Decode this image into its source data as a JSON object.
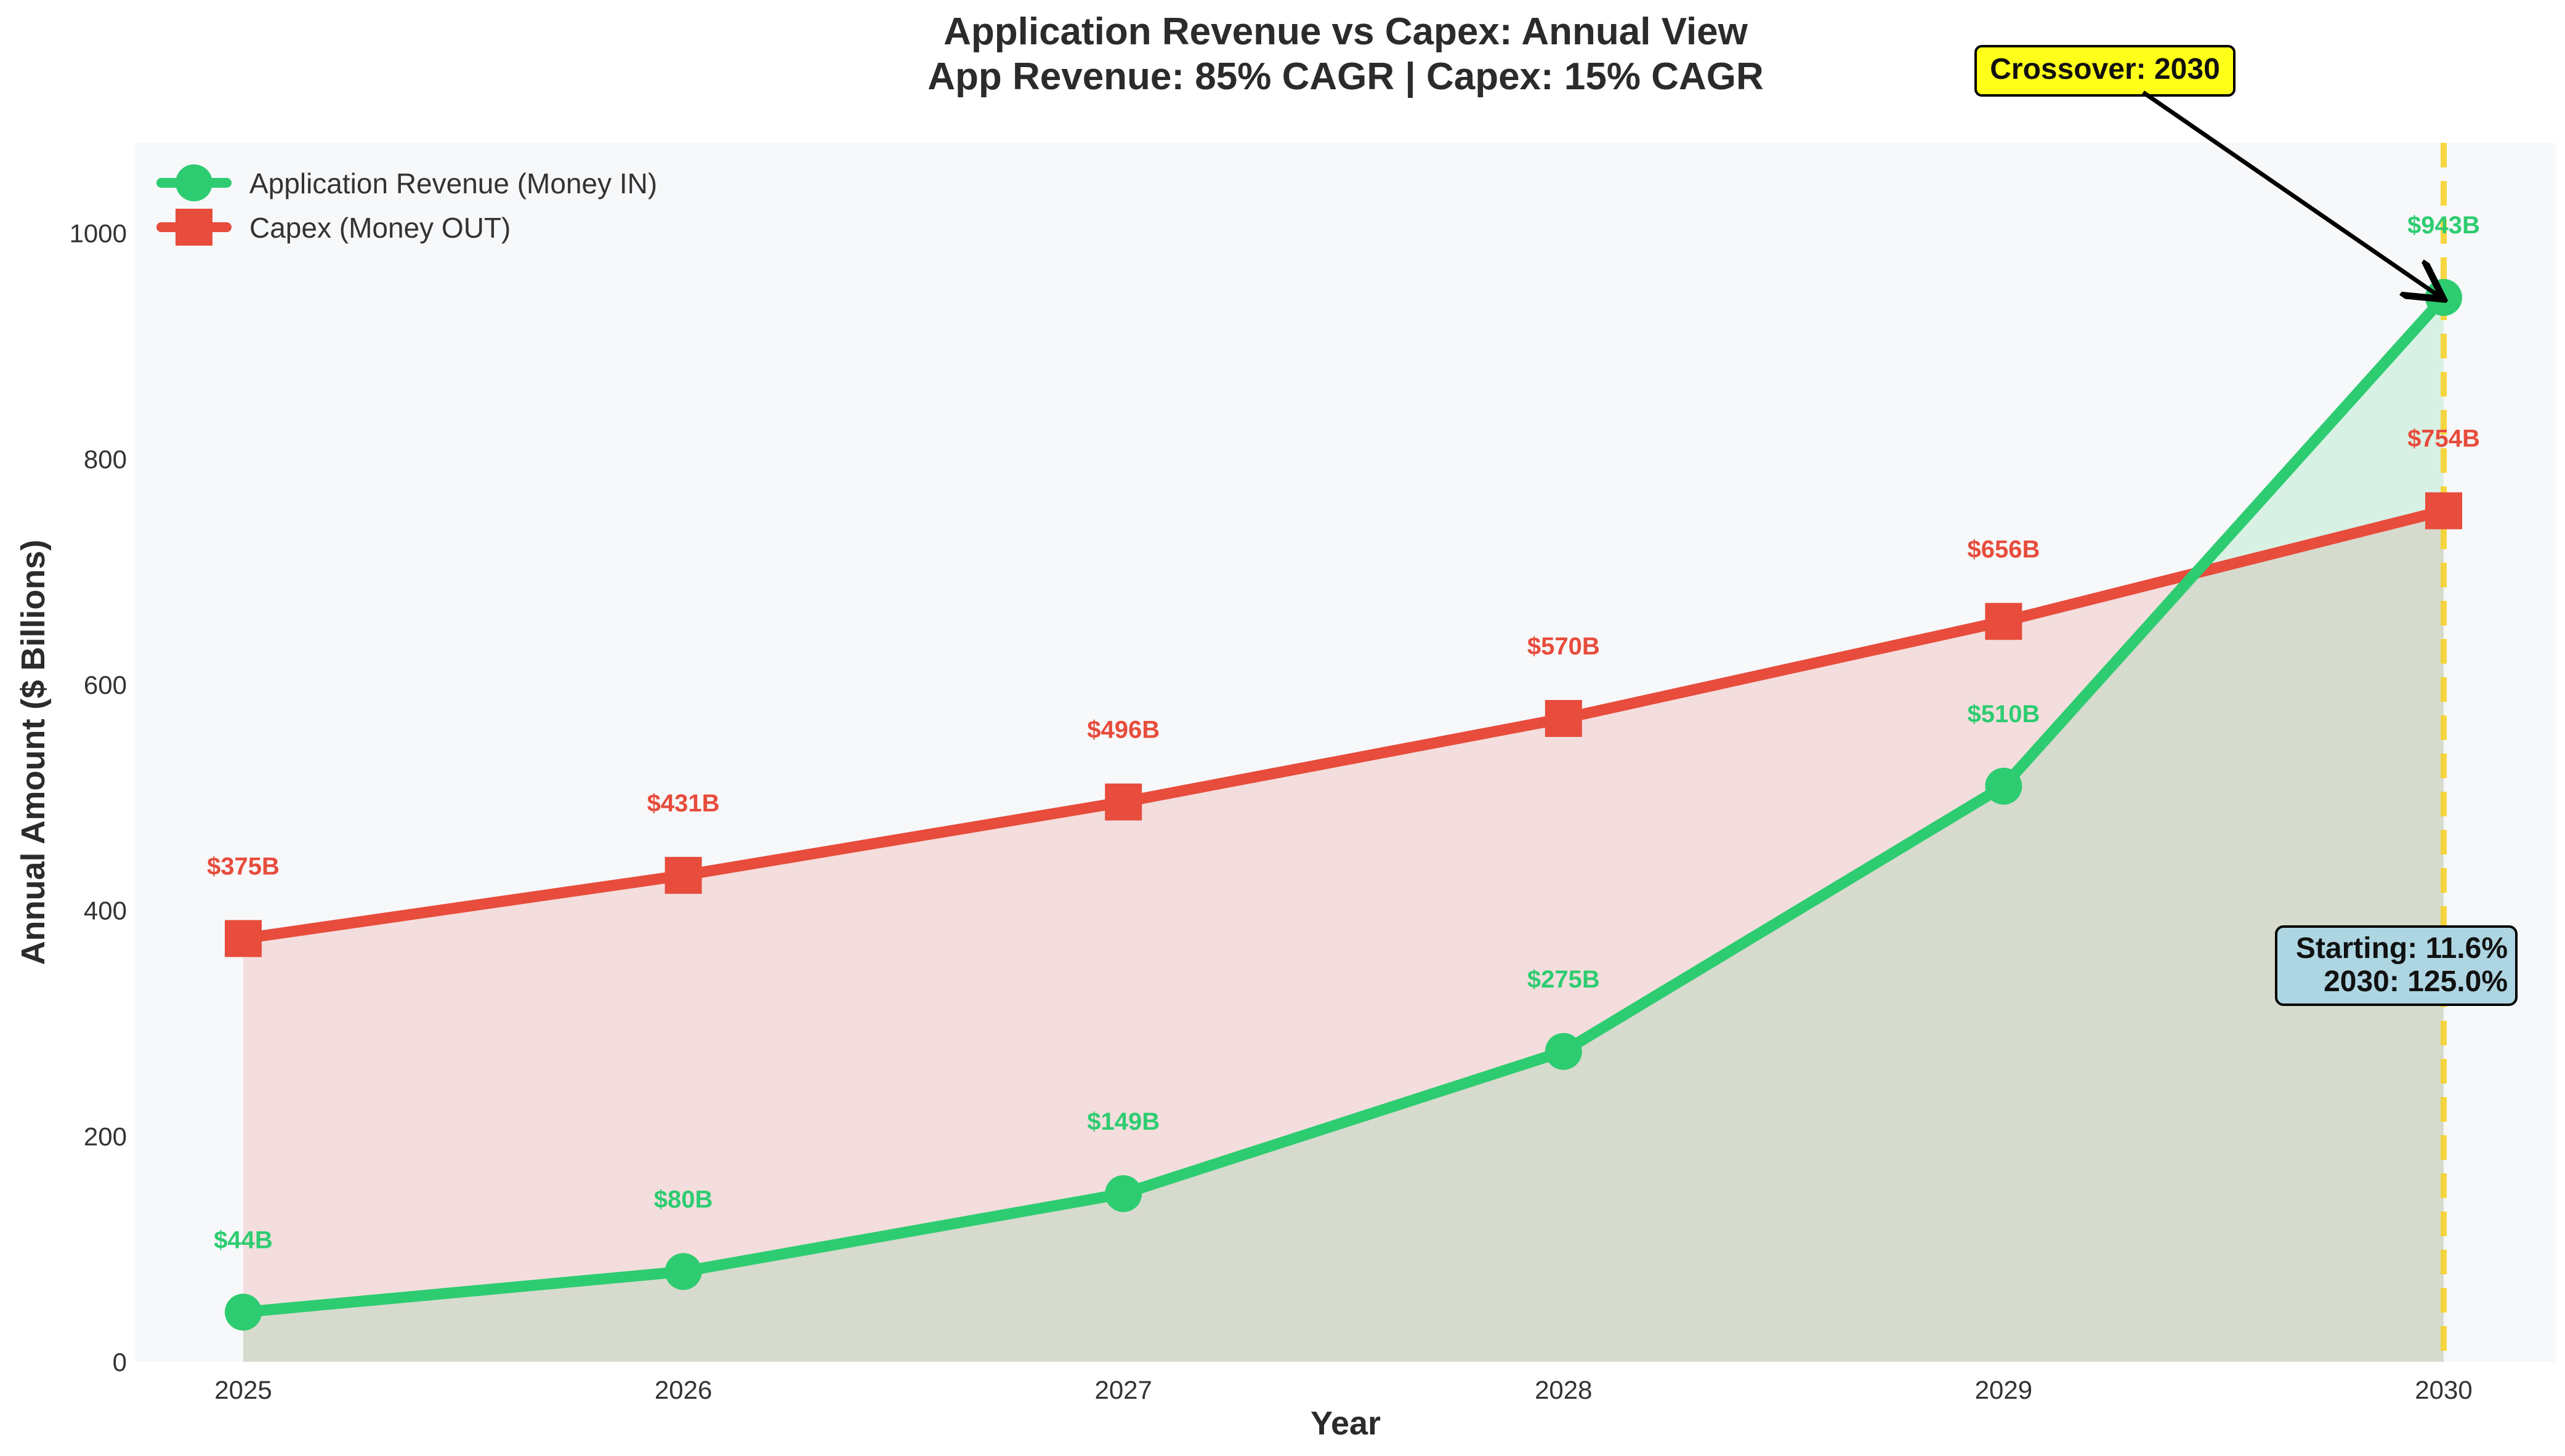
{
  "chart_data": {
    "type": "line",
    "title": "Application Revenue vs Capex: Annual View",
    "subtitle": "App Revenue: 85% CAGR | Capex: 15% CAGR",
    "xlabel": "Year",
    "ylabel": "Annual Amount ($ Billions)",
    "x": [
      2025,
      2026,
      2027,
      2028,
      2029,
      2030
    ],
    "x_tick_labels": [
      "2025",
      "2026",
      "2027",
      "2028",
      "2029",
      "2030"
    ],
    "ylim": [
      0,
      1080
    ],
    "y_ticks": [
      0,
      200,
      400,
      600,
      800,
      1000
    ],
    "y_tick_labels": [
      "0",
      "200",
      "400",
      "600",
      "800",
      "1000"
    ],
    "grid": false,
    "legend_position": "top-left",
    "series": [
      {
        "name": "Application Revenue (Money IN)",
        "marker": "circle",
        "color": "#2ecc71",
        "values": [
          44,
          80,
          149,
          275,
          510,
          943
        ],
        "labels": [
          "$44B",
          "$80B",
          "$149B",
          "$275B",
          "$510B",
          "$943B"
        ]
      },
      {
        "name": "Capex (Money OUT)",
        "marker": "square",
        "color": "#e74c3c",
        "values": [
          375,
          431,
          496,
          570,
          656,
          754
        ],
        "labels": [
          "$375B",
          "$431B",
          "$496B",
          "$570B",
          "$656B",
          "$754B"
        ]
      }
    ],
    "crossover": {
      "year": 2030,
      "label": "Crossover: 2030",
      "line_color": "#f6d32d",
      "box_color": "#ffff1a"
    },
    "ratio_box": {
      "line1": "Starting: 11.6%",
      "line2": "2030: 125.0%",
      "box_color": "#aed6e2"
    },
    "colors": {
      "plot_background": "#f7f8fa",
      "revenue_fill": "#2ecc71",
      "capex_fill": "#e74c3c"
    }
  }
}
